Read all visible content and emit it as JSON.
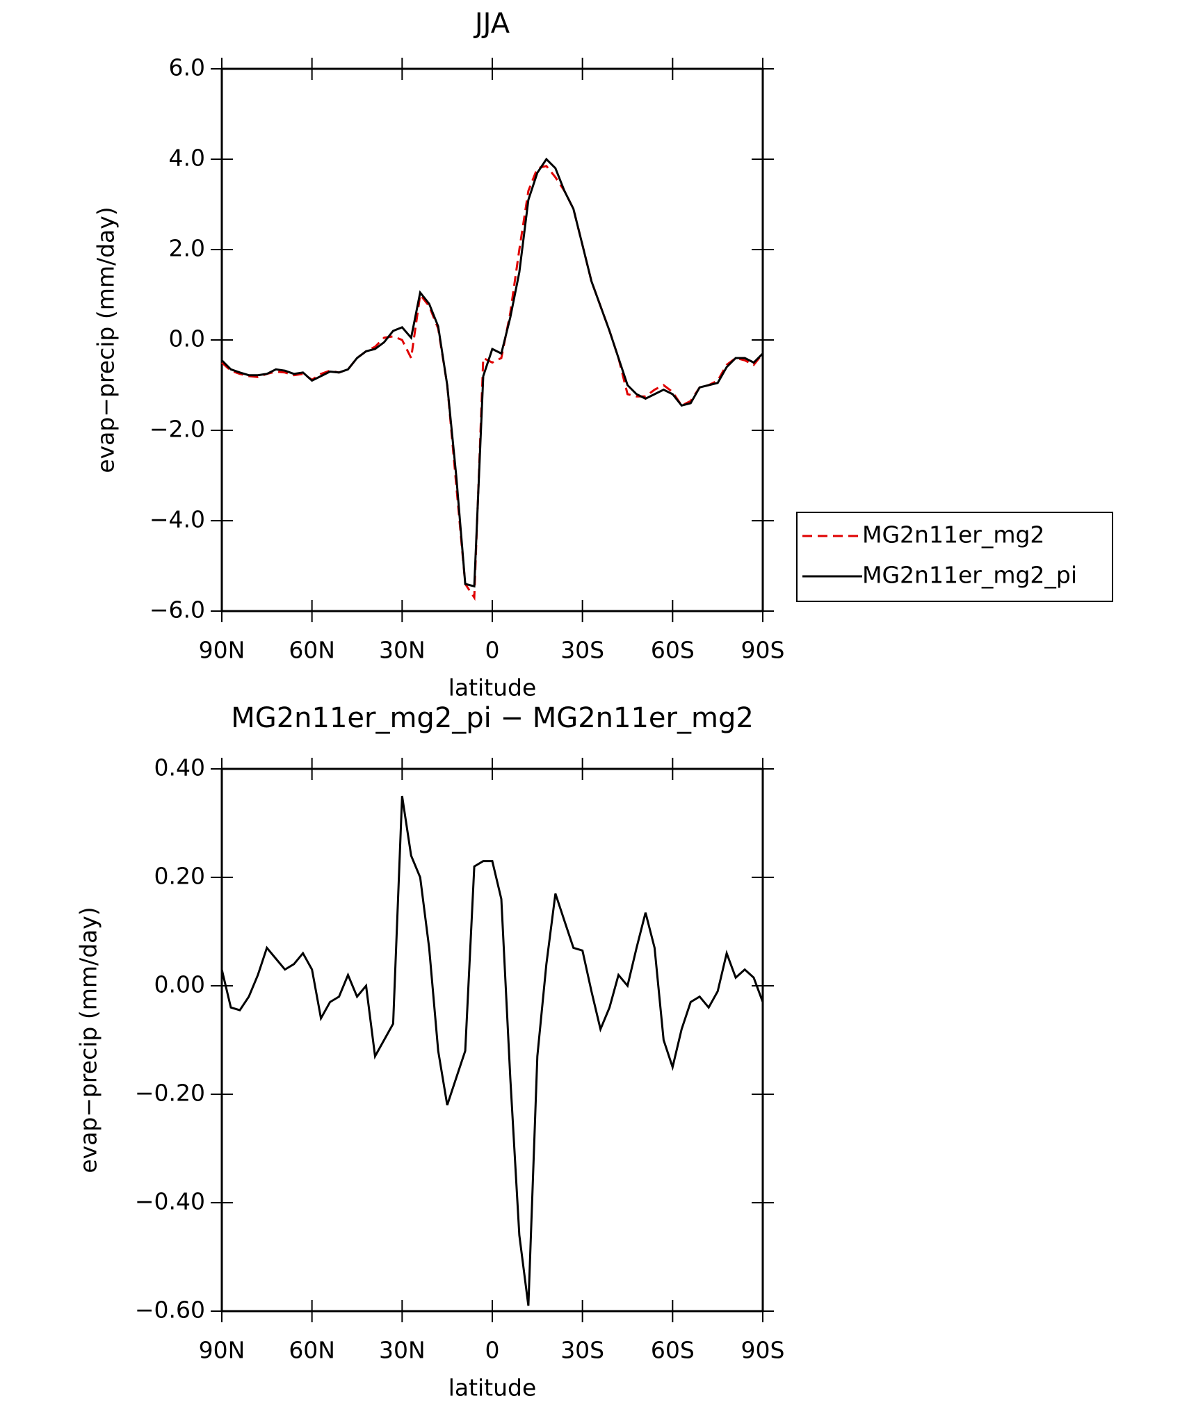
{
  "chart_data": [
    {
      "type": "line",
      "title": "JJA",
      "xlabel": "latitude",
      "ylabel": "evap−precip (mm/day)",
      "x": [
        90,
        87,
        84,
        81,
        78,
        75,
        72,
        69,
        66,
        63,
        60,
        57,
        54,
        51,
        48,
        45,
        42,
        39,
        36,
        33,
        30,
        27,
        24,
        21,
        18,
        15,
        12,
        9,
        6,
        3,
        0,
        -3,
        -6,
        -9,
        -12,
        -15,
        -18,
        -21,
        -24,
        -27,
        -30,
        -33,
        -36,
        -39,
        -42,
        -45,
        -48,
        -51,
        -54,
        -57,
        -60,
        -63,
        -66,
        -69,
        -72,
        -75,
        -78,
        -81,
        -84,
        -87,
        -90
      ],
      "series": [
        {
          "name": "MG2n11er_mg2",
          "color": "#e00000",
          "dash": true,
          "values": [
            -0.5,
            -0.68,
            -0.75,
            -0.8,
            -0.82,
            -0.75,
            -0.7,
            -0.72,
            -0.78,
            -0.75,
            -0.88,
            -0.75,
            -0.68,
            -0.72,
            -0.65,
            -0.4,
            -0.25,
            -0.15,
            0.05,
            0.08,
            0.0,
            -0.4,
            1.0,
            0.75,
            0.25,
            -1.0,
            -3.2,
            -5.4,
            -5.7,
            -0.4,
            -0.5,
            -0.4,
            0.6,
            2.0,
            3.3,
            3.8,
            3.85,
            3.6,
            3.3,
            2.9,
            2.1,
            1.3,
            0.75,
            0.2,
            -0.4,
            -1.2,
            -1.25,
            -1.25,
            -1.1,
            -1.0,
            -1.15,
            -1.45,
            -1.35,
            -1.05,
            -1.0,
            -0.9,
            -0.55,
            -0.4,
            -0.45,
            -0.55,
            -0.3
          ]
        },
        {
          "name": "MG2n11er_mg2_pi",
          "color": "#000000",
          "dash": false,
          "values": [
            -0.45,
            -0.65,
            -0.72,
            -0.78,
            -0.78,
            -0.75,
            -0.65,
            -0.68,
            -0.75,
            -0.72,
            -0.9,
            -0.8,
            -0.7,
            -0.72,
            -0.65,
            -0.4,
            -0.25,
            -0.2,
            -0.05,
            0.2,
            0.28,
            0.05,
            1.05,
            0.8,
            0.3,
            -1.0,
            -3.0,
            -5.4,
            -5.45,
            -0.8,
            -0.2,
            -0.3,
            0.5,
            1.5,
            3.1,
            3.7,
            4.0,
            3.8,
            3.3,
            2.9,
            2.1,
            1.3,
            0.75,
            0.2,
            -0.4,
            -1.0,
            -1.2,
            -1.3,
            -1.2,
            -1.1,
            -1.2,
            -1.45,
            -1.4,
            -1.05,
            -1.0,
            -0.95,
            -0.6,
            -0.4,
            -0.4,
            -0.5,
            -0.3
          ]
        }
      ],
      "xlim": [
        90,
        -90
      ],
      "xticks": [
        {
          "value": 90,
          "label": "90N"
        },
        {
          "value": 60,
          "label": "60N"
        },
        {
          "value": 30,
          "label": "30N"
        },
        0,
        {
          "value": -30,
          "label": "30S"
        },
        {
          "value": -60,
          "label": "60S"
        },
        {
          "value": -90,
          "label": "90S"
        }
      ],
      "ylim": [
        -6,
        6
      ],
      "yticks": [
        {
          "value": -6,
          "label": "−6.0"
        },
        {
          "value": -4,
          "label": "−4.0"
        },
        {
          "value": -2,
          "label": "−2.0"
        },
        {
          "value": 0,
          "label": "0.0"
        },
        {
          "value": 2,
          "label": "2.0"
        },
        {
          "value": 4,
          "label": "4.0"
        },
        {
          "value": 6,
          "label": "6.0"
        }
      ],
      "legend": "right"
    },
    {
      "type": "line",
      "title": "MG2n11er_mg2_pi − MG2n11er_mg2",
      "xlabel": "latitude",
      "ylabel": "evap−precip (mm/day)",
      "x": [
        90,
        87,
        84,
        81,
        78,
        75,
        72,
        69,
        66,
        63,
        60,
        57,
        54,
        51,
        48,
        45,
        42,
        39,
        36,
        33,
        30,
        27,
        24,
        21,
        18,
        15,
        12,
        9,
        6,
        3,
        0,
        -3,
        -6,
        -9,
        -12,
        -15,
        -18,
        -21,
        -24,
        -27,
        -30,
        -33,
        -36,
        -39,
        -42,
        -45,
        -48,
        -51,
        -54,
        -57,
        -60,
        -63,
        -66,
        -69,
        -72,
        -75,
        -78,
        -81,
        -84,
        -87,
        -90
      ],
      "values": [
        0.03,
        -0.04,
        -0.045,
        -0.02,
        0.02,
        0.07,
        0.05,
        0.03,
        0.04,
        0.06,
        0.03,
        -0.06,
        -0.03,
        -0.02,
        0.02,
        -0.02,
        0.0,
        -0.13,
        -0.1,
        -0.07,
        0.35,
        0.24,
        0.2,
        0.07,
        -0.12,
        -0.22,
        -0.17,
        -0.12,
        0.22,
        0.23,
        0.23,
        0.16,
        -0.17,
        -0.46,
        -0.59,
        -0.13,
        0.04,
        0.17,
        0.12,
        0.07,
        0.065,
        -0.01,
        -0.08,
        -0.04,
        0.02,
        0.0,
        0.07,
        0.135,
        0.07,
        -0.1,
        -0.15,
        -0.08,
        -0.03,
        -0.02,
        -0.04,
        -0.01,
        0.06,
        0.015,
        0.03,
        0.015,
        -0.03
      ],
      "color": "#000000",
      "xlim": [
        90,
        -90
      ],
      "xticks": [
        {
          "value": 90,
          "label": "90N"
        },
        {
          "value": 60,
          "label": "60N"
        },
        {
          "value": 30,
          "label": "30N"
        },
        0,
        {
          "value": -30,
          "label": "30S"
        },
        {
          "value": -60,
          "label": "60S"
        },
        {
          "value": -90,
          "label": "90S"
        }
      ],
      "ylim": [
        -0.6,
        0.4
      ],
      "yticks": [
        {
          "value": -0.6,
          "label": "−0.60"
        },
        {
          "value": -0.4,
          "label": "−0.40"
        },
        {
          "value": -0.2,
          "label": "−0.20"
        },
        {
          "value": 0,
          "label": "0.00"
        },
        {
          "value": 0.2,
          "label": "0.20"
        },
        {
          "value": 0.4,
          "label": "0.40"
        }
      ]
    }
  ]
}
